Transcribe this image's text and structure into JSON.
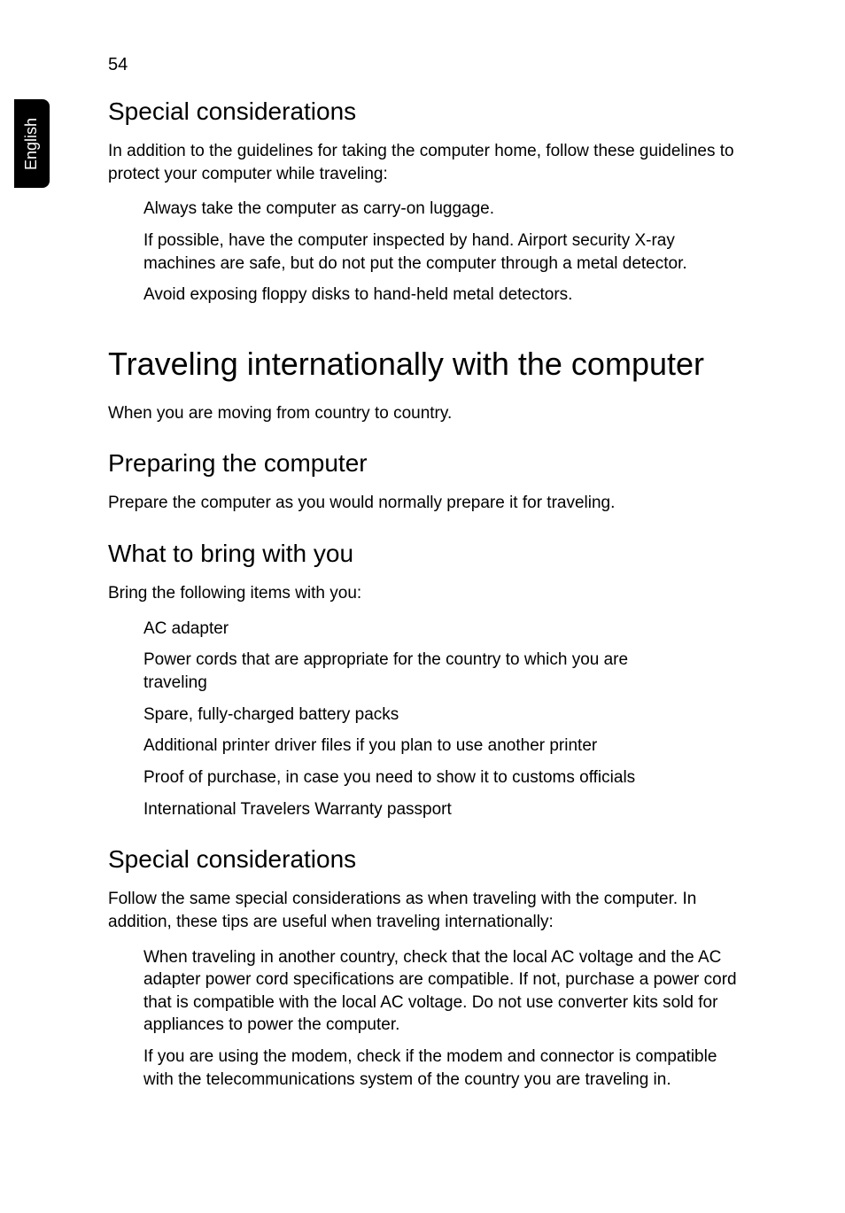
{
  "page_number": "54",
  "side_tab": "English",
  "sections": {
    "sc1": {
      "heading": "Special considerations",
      "intro": "In addition to the guidelines for taking the computer home, follow these guidelines to protect your computer while traveling:",
      "items": [
        "Always take the computer as carry-on luggage.",
        "If possible, have the computer inspected by hand. Airport security X-ray machines are safe, but do not put the computer through a metal detector.",
        "Avoid exposing floppy disks to hand-held metal detectors."
      ]
    },
    "travel_intl": {
      "heading": "Traveling internationally with the computer",
      "intro": "When you are moving from country to country."
    },
    "prep": {
      "heading": "Preparing the computer",
      "intro": "Prepare the computer as you would normally prepare it for traveling."
    },
    "bring": {
      "heading": "What to bring with you",
      "intro": "Bring the following items with you:",
      "items": [
        "AC adapter",
        "Power cords that are appropriate for the country to which you are traveling",
        "Spare, fully-charged battery packs",
        "Additional printer driver files if you plan to use another printer",
        "Proof of purchase, in case you need to show it to customs officials",
        "International Travelers Warranty passport"
      ]
    },
    "sc2": {
      "heading": "Special considerations",
      "intro": "Follow the same special considerations as when traveling with the computer. In addition, these tips are useful when traveling internationally:",
      "items": [
        "When traveling in another country, check that the local AC voltage and the AC adapter power cord specifications are compatible. If not, purchase a power cord that is compatible with the local AC voltage. Do not use converter kits sold for appliances to power the computer.",
        "If you are using the modem, check if the modem and connector is compatible with the telecommunications system of the country you are traveling in."
      ]
    }
  }
}
